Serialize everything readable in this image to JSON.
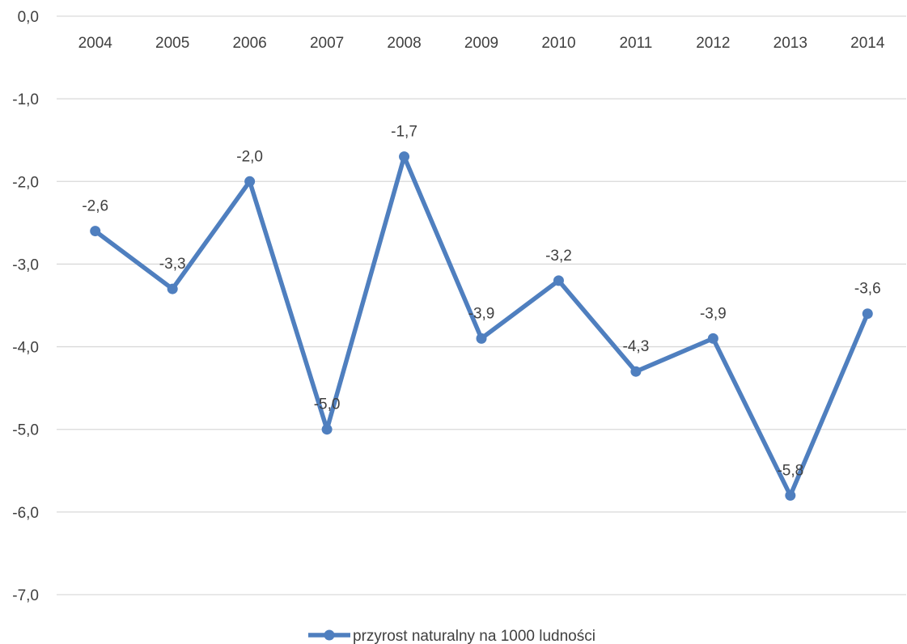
{
  "chart_data": {
    "type": "line",
    "title": "",
    "xlabel": "",
    "ylabel": "",
    "categories": [
      "2004",
      "2005",
      "2006",
      "2007",
      "2008",
      "2009",
      "2010",
      "2011",
      "2012",
      "2013",
      "2014"
    ],
    "series": [
      {
        "name": "przyrost naturalny na 1000 ludności",
        "values": [
          -2.6,
          -3.3,
          -2.0,
          -5.0,
          -1.7,
          -3.9,
          -3.2,
          -4.3,
          -3.9,
          -5.8,
          -3.6
        ],
        "data_labels": [
          "-2,6",
          "-3,3",
          "-2,0",
          "-5,0",
          "-1,7",
          "-3,9",
          "-3,2",
          "-4,3",
          "-3,9",
          "-5,8",
          "-3,6"
        ],
        "color": "#4f7fbf"
      }
    ],
    "ylim": [
      -7.0,
      0.0
    ],
    "yticks": [
      0,
      -1,
      -2,
      -3,
      -4,
      -5,
      -6,
      -7
    ],
    "ytick_labels": [
      "0,0",
      "-1,0",
      "-2,0",
      "-3,0",
      "-4,0",
      "-5,0",
      "-6,0",
      "-7,0"
    ],
    "x_axis_position": "top",
    "grid": true,
    "gridline_color": "#d9d9d9",
    "legend": "bottom-center"
  }
}
